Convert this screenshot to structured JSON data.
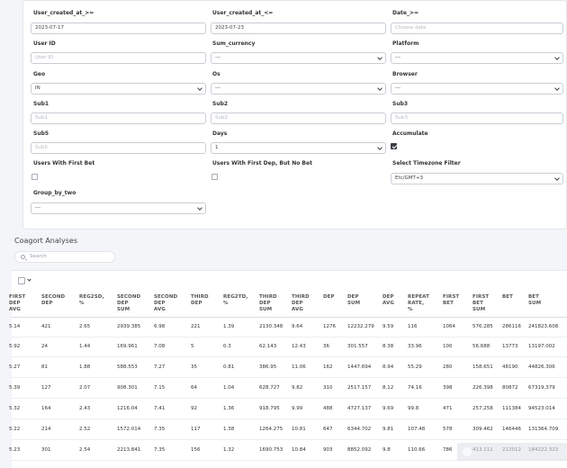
{
  "filters": {
    "user_created_from": {
      "label": "User_created_at_>=",
      "value": "2023-07-17"
    },
    "user_created_to": {
      "label": "User_created_at_<=",
      "value": "2023-07-23"
    },
    "date_from": {
      "label": "Date_>=",
      "placeholder": "Choose date"
    },
    "user_id": {
      "label": "User ID",
      "placeholder": "User ID"
    },
    "sum_currency": {
      "label": "Sum_currency",
      "value": "---"
    },
    "platform": {
      "label": "Platform",
      "value": "---"
    },
    "geo": {
      "label": "Geo",
      "value": "IN"
    },
    "os": {
      "label": "Os",
      "value": "---"
    },
    "browser": {
      "label": "Browser",
      "value": "---"
    },
    "sub1": {
      "label": "Sub1",
      "placeholder": "Sub1"
    },
    "sub2": {
      "label": "Sub2",
      "placeholder": "Sub2"
    },
    "sub3": {
      "label": "Sub3",
      "placeholder": "Sub3"
    },
    "sub5": {
      "label": "Sub5",
      "placeholder": "Sub5"
    },
    "days": {
      "label": "Days",
      "value": "1"
    },
    "accumulate": {
      "label": "Accumulate",
      "checked": true
    },
    "first_bet": {
      "label": "Users With First Bet",
      "checked": false
    },
    "first_dep_no_bet": {
      "label": "Users With First Dep, But No Bet",
      "checked": false
    },
    "timezone": {
      "label": "Select Timezone Filter",
      "value": "Etc/GMT+3"
    },
    "group_by_two": {
      "label": "Group_by_two",
      "value": "---"
    }
  },
  "section_title": "Coagort Analyses",
  "search": {
    "placeholder": "Search"
  },
  "table": {
    "columns": [
      [
        "FIRST",
        "DEP",
        "AVG"
      ],
      [
        "SECOND",
        "DEP"
      ],
      [
        "REG2SD,",
        "%"
      ],
      [
        "SECOND",
        "DEP",
        "SUM"
      ],
      [
        "SECOND",
        "DEP",
        "AVG"
      ],
      [
        "THIRD",
        "DEP"
      ],
      [
        "REG2TD,",
        "%"
      ],
      [
        "THIRD",
        "DEP",
        "SUM"
      ],
      [
        "THIRD",
        "DEP",
        "AVG"
      ],
      [
        "DEP"
      ],
      [
        "DEP",
        "SUM"
      ],
      [
        "DEP",
        "AVG"
      ],
      [
        "REPEAT",
        "RATE,",
        "%"
      ],
      [
        "FIRST",
        "BET"
      ],
      [
        "FIRST",
        "BET",
        "SUM"
      ],
      [
        "BET"
      ],
      [
        "BET",
        "SUM"
      ]
    ],
    "rows": [
      [
        "5.14",
        "421",
        "2.65",
        "2939.385",
        "6.98",
        "221",
        "1.39",
        "2130.348",
        "9.64",
        "1276",
        "12232.279",
        "9.59",
        "116",
        "1064",
        "576.285",
        "286116",
        "241823.608"
      ],
      [
        "5.92",
        "24",
        "1.44",
        "169.961",
        "7.08",
        "5",
        "0.3",
        "62.143",
        "12.43",
        "36",
        "301.557",
        "8.38",
        "33.96",
        "100",
        "56.688",
        "13773",
        "13197.002"
      ],
      [
        "5.27",
        "81",
        "1.88",
        "588.553",
        "7.27",
        "35",
        "0.81",
        "386.95",
        "11.06",
        "162",
        "1447.694",
        "8.94",
        "55.29",
        "280",
        "158.651",
        "48190",
        "44826.306"
      ],
      [
        "5.39",
        "127",
        "2.07",
        "908.301",
        "7.15",
        "64",
        "1.04",
        "628.727",
        "9.82",
        "310",
        "2517.157",
        "8.12",
        "74.16",
        "398",
        "226.398",
        "80872",
        "67319.379"
      ],
      [
        "5.32",
        "164",
        "2.43",
        "1216.04",
        "7.41",
        "92",
        "1.36",
        "918.795",
        "9.99",
        "488",
        "4727.137",
        "9.69",
        "99.8",
        "471",
        "257.258",
        "111384",
        "94523.014"
      ],
      [
        "5.22",
        "214",
        "2.52",
        "1572.014",
        "7.35",
        "117",
        "1.38",
        "1264.275",
        "10.81",
        "647",
        "6344.702",
        "9.81",
        "107.48",
        "578",
        "309.462",
        "146446",
        "131364.709"
      ],
      [
        "5.23",
        "301",
        "2.54",
        "2213.841",
        "7.35",
        "156",
        "1.32",
        "1690.753",
        "10.84",
        "903",
        "8852.092",
        "9.8",
        "110.66",
        "786",
        "413.111",
        "212012",
        "184222.323"
      ]
    ]
  }
}
